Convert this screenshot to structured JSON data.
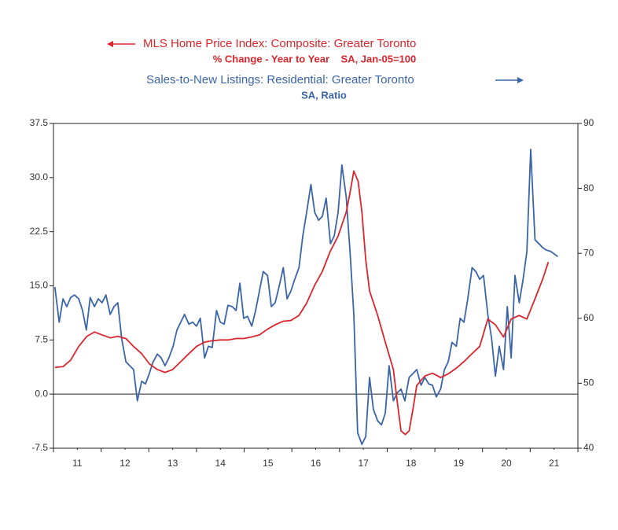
{
  "chart_data": {
    "type": "line",
    "series": [
      {
        "name": "MLS Home Price Index: Composite: Greater Toronto",
        "subtitle": "% Change - Year to Year    SA, Jan-05=100",
        "color": "#d9262c",
        "axis": "y",
        "x": [
          11.03,
          11.2,
          11.36,
          11.53,
          11.7,
          11.86,
          12.02,
          12.19,
          12.35,
          12.52,
          12.68,
          12.85,
          13.01,
          13.18,
          13.34,
          13.5,
          13.67,
          13.84,
          14.0,
          14.17,
          14.33,
          14.5,
          14.66,
          14.83,
          14.99,
          15.15,
          15.32,
          15.49,
          15.65,
          15.82,
          15.98,
          16.15,
          16.31,
          16.48,
          16.64,
          16.8,
          16.97,
          17.14,
          17.22,
          17.3,
          17.39,
          17.47,
          17.55,
          17.63,
          17.8,
          17.96,
          18.13,
          18.21,
          18.29,
          18.38,
          18.46,
          18.54,
          18.62,
          18.79,
          18.95,
          19.12,
          19.28,
          19.45,
          19.61,
          19.78,
          19.94,
          20.11,
          20.27,
          20.44,
          20.6,
          20.77,
          20.93,
          21.1,
          21.26,
          21.38
        ],
        "values": [
          3.7,
          3.8,
          4.7,
          6.6,
          8.0,
          8.6,
          8.2,
          7.8,
          8.0,
          7.7,
          6.6,
          5.6,
          4.2,
          3.4,
          3.0,
          3.4,
          4.5,
          5.6,
          6.6,
          7.2,
          7.4,
          7.5,
          7.5,
          7.7,
          7.7,
          7.9,
          8.2,
          9.0,
          9.6,
          10.1,
          10.2,
          10.9,
          12.6,
          15.1,
          17.0,
          19.7,
          21.9,
          25.2,
          27.9,
          30.9,
          29.5,
          25.2,
          18.6,
          14.3,
          10.9,
          7.2,
          3.4,
          -1.0,
          -5.1,
          -5.6,
          -5.1,
          -2.1,
          1.2,
          2.5,
          2.9,
          2.3,
          2.8,
          3.6,
          4.5,
          5.6,
          6.6,
          10.4,
          9.6,
          7.9,
          10.4,
          10.9,
          10.4,
          13.2,
          15.9,
          18.3
        ]
      },
      {
        "name": "Sales-to-New Listings: Residential: Greater Toronto",
        "subtitle": "SA, Ratio",
        "color": "#3a64a8",
        "axis": "y2",
        "x": [
          11.03,
          11.12,
          11.2,
          11.28,
          11.36,
          11.44,
          11.53,
          11.61,
          11.69,
          11.77,
          11.86,
          11.94,
          12.02,
          12.1,
          12.19,
          12.27,
          12.35,
          12.43,
          12.52,
          12.6,
          12.68,
          12.76,
          12.85,
          12.93,
          13.01,
          13.09,
          13.18,
          13.26,
          13.34,
          13.42,
          13.51,
          13.59,
          13.67,
          13.75,
          13.84,
          13.92,
          14.0,
          14.08,
          14.17,
          14.25,
          14.33,
          14.42,
          14.5,
          14.58,
          14.66,
          14.75,
          14.83,
          14.91,
          14.99,
          15.07,
          15.16,
          15.24,
          15.32,
          15.4,
          15.49,
          15.57,
          15.65,
          15.73,
          15.82,
          15.9,
          15.98,
          16.06,
          16.15,
          16.23,
          16.31,
          16.4,
          16.48,
          16.56,
          16.64,
          16.72,
          16.81,
          16.89,
          16.97,
          17.05,
          17.14,
          17.22,
          17.3,
          17.38,
          17.47,
          17.55,
          17.63,
          17.71,
          17.8,
          17.88,
          17.96,
          18.04,
          18.13,
          18.21,
          18.29,
          18.37,
          18.46,
          18.54,
          18.62,
          18.71,
          18.79,
          18.87,
          18.95,
          19.03,
          19.12,
          19.2,
          19.28,
          19.36,
          19.45,
          19.53,
          19.61,
          19.69,
          19.78,
          19.86,
          19.94,
          20.02,
          20.11,
          20.19,
          20.27,
          20.35,
          20.44,
          20.52,
          20.6,
          20.68,
          20.77,
          20.85,
          20.93,
          21.01,
          21.1,
          21.18,
          21.26,
          21.34,
          21.43,
          21.58
        ],
        "values": [
          64.8,
          59.4,
          63.0,
          61.8,
          63.2,
          63.6,
          63.0,
          61.2,
          58.2,
          63.2,
          61.8,
          63.0,
          62.4,
          63.6,
          60.6,
          61.8,
          62.4,
          56.9,
          53.3,
          52.7,
          52.1,
          47.3,
          50.3,
          49.9,
          51.5,
          53.3,
          54.5,
          53.9,
          52.7,
          53.9,
          55.7,
          58.2,
          59.4,
          60.6,
          59.1,
          59.4,
          58.8,
          60.0,
          53.9,
          55.7,
          55.5,
          61.2,
          59.4,
          59.1,
          62.0,
          61.8,
          61.2,
          65.4,
          60.0,
          60.3,
          58.8,
          61.2,
          64.2,
          67.2,
          66.6,
          61.8,
          62.4,
          64.8,
          67.8,
          63.0,
          64.2,
          66.0,
          67.8,
          72.7,
          76.3,
          80.6,
          76.3,
          75.1,
          75.7,
          78.5,
          71.5,
          72.7,
          76.3,
          83.6,
          78.7,
          70.3,
          60.6,
          42.4,
          40.6,
          41.8,
          50.9,
          46.0,
          44.2,
          43.6,
          45.4,
          52.7,
          47.3,
          48.5,
          49.1,
          47.3,
          50.9,
          51.5,
          52.1,
          49.7,
          50.9,
          49.9,
          49.7,
          47.9,
          49.1,
          52.1,
          53.3,
          56.3,
          55.7,
          60.0,
          59.4,
          63.0,
          67.8,
          67.2,
          66.0,
          66.6,
          60.6,
          56.9,
          51.1,
          55.7,
          52.1,
          61.8,
          53.9,
          66.6,
          62.4,
          66.0,
          70.3,
          86.0,
          72.1,
          71.5,
          70.9,
          70.5,
          70.3,
          69.5
        ]
      }
    ],
    "xlim": [
      11,
      22
    ],
    "xticks": [
      {
        "value": 11.5,
        "label": "11"
      },
      {
        "value": 12.5,
        "label": "12"
      },
      {
        "value": 13.5,
        "label": "13"
      },
      {
        "value": 14.5,
        "label": "14"
      },
      {
        "value": 15.5,
        "label": "15"
      },
      {
        "value": 16.5,
        "label": "16"
      },
      {
        "value": 17.5,
        "label": "17"
      },
      {
        "value": 18.5,
        "label": "18"
      },
      {
        "value": 19.5,
        "label": "19"
      },
      {
        "value": 20.5,
        "label": "20"
      },
      {
        "value": 21.5,
        "label": "21"
      }
    ],
    "ylim": [
      -7.5,
      37.5
    ],
    "yticks": [
      37.5,
      {
        "value": 30,
        "label": "30.0"
      },
      22.5,
      {
        "value": 15,
        "label": "15.0"
      },
      7.5,
      {
        "value": 0,
        "label": "0.0"
      },
      -7.5
    ],
    "y2lim": [
      40,
      90
    ],
    "y2ticks": [
      90,
      80,
      70,
      60,
      50,
      40
    ],
    "reference_line": 0,
    "grid": false
  }
}
